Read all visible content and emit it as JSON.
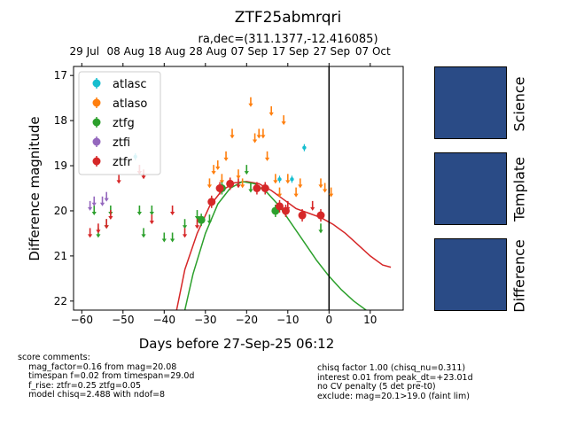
{
  "chart_data": {
    "type": "scatter",
    "title": "ZTF25abmrqri",
    "subtitle": "ra,dec=(311.1377,-12.416085)",
    "xlabel": "Days before 27-Sep-25 06:12",
    "ylabel": "Difference magnitude",
    "xlim": [
      -62,
      18
    ],
    "ylim": [
      22.2,
      16.8
    ],
    "y_inverted": true,
    "xticks": [
      -60,
      -50,
      -40,
      -30,
      -20,
      -10,
      0,
      10
    ],
    "yticks": [
      17,
      18,
      19,
      20,
      21,
      22
    ],
    "top_axis": {
      "tick_x": [
        -60,
        -50,
        -40,
        -30,
        -20,
        -10,
        0,
        10
      ],
      "tick_labels": [
        "29 Jul",
        "08 Aug",
        "18 Aug",
        "28 Aug",
        "07 Sep",
        "17 Sep",
        "27 Sep",
        "07 Oct"
      ]
    },
    "vline_x": 0,
    "legend": {
      "placement": "top-left"
    },
    "series": [
      {
        "name": "atlasc",
        "color": "#17becf",
        "marker": "point",
        "points": [
          [
            -47,
            18.8
          ],
          [
            -12,
            19.3
          ],
          [
            -9,
            19.3
          ],
          [
            -6,
            18.6
          ]
        ]
      },
      {
        "name": "atlaso",
        "color": "#ff7f0e",
        "marker": "upper-limit",
        "points": [
          [
            -29,
            19.4
          ],
          [
            -28,
            19.1
          ],
          [
            -27,
            19.0
          ],
          [
            -26,
            19.3
          ],
          [
            -25,
            18.8
          ],
          [
            -24,
            19.4
          ],
          [
            -23.5,
            18.3
          ],
          [
            -22,
            19.2
          ],
          [
            -21,
            19.4
          ],
          [
            -19,
            17.6
          ],
          [
            -18,
            18.4
          ],
          [
            -17,
            18.3
          ],
          [
            -16,
            18.3
          ],
          [
            -15,
            18.8
          ],
          [
            -14,
            17.8
          ],
          [
            -13,
            19.3
          ],
          [
            -12,
            19.6
          ],
          [
            -11,
            18.0
          ],
          [
            -10,
            19.3
          ],
          [
            -8,
            19.6
          ],
          [
            -7,
            19.4
          ],
          [
            -2,
            19.4
          ],
          [
            -1,
            19.5
          ],
          [
            0.5,
            19.6
          ]
        ]
      },
      {
        "name": "ztfg",
        "color": "#2ca02c",
        "marker": "upper-limit",
        "points": [
          [
            -57,
            20.0
          ],
          [
            -56,
            20.5
          ],
          [
            -54,
            20.3
          ],
          [
            -53,
            20.0
          ],
          [
            -46,
            20.0
          ],
          [
            -45,
            20.5
          ],
          [
            -43,
            20.0
          ],
          [
            -40,
            20.6
          ],
          [
            -38,
            20.6
          ],
          [
            -35,
            20.3
          ],
          [
            -32,
            20.1
          ],
          [
            -29,
            20.2
          ],
          [
            -20,
            19.1
          ],
          [
            -19,
            19.5
          ],
          [
            -2,
            20.4
          ]
        ]
      },
      {
        "name": "ztfg",
        "color": "#2ca02c",
        "marker": "detection",
        "points": [
          [
            -31,
            20.2
          ],
          [
            -26,
            19.5
          ],
          [
            -13,
            20.0
          ]
        ]
      },
      {
        "name": "ztfi",
        "color": "#9467bd",
        "marker": "upper-limit",
        "points": [
          [
            -58,
            19.9
          ],
          [
            -57,
            19.8
          ],
          [
            -55,
            19.8
          ],
          [
            -54,
            19.7
          ],
          [
            -46,
            19.1
          ]
        ]
      },
      {
        "name": "ztfr",
        "color": "#d62728",
        "marker": "upper-limit",
        "points": [
          [
            -58,
            20.5
          ],
          [
            -56,
            20.4
          ],
          [
            -54,
            20.3
          ],
          [
            -53,
            20.1
          ],
          [
            -51,
            19.3
          ],
          [
            -46,
            19.1
          ],
          [
            -45,
            19.2
          ],
          [
            -43,
            20.2
          ],
          [
            -38,
            20.0
          ],
          [
            -35,
            20.5
          ],
          [
            -32,
            20.3
          ],
          [
            -22,
            19.4
          ],
          [
            -10,
            19.9
          ],
          [
            -4,
            19.9
          ]
        ]
      },
      {
        "name": "ztfr",
        "color": "#d62728",
        "marker": "detection",
        "points": [
          [
            -28.5,
            19.8
          ],
          [
            -26.5,
            19.5
          ],
          [
            -24,
            19.4
          ],
          [
            -17.5,
            19.5
          ],
          [
            -15.5,
            19.5
          ],
          [
            -12,
            19.9
          ],
          [
            -10.5,
            20.0
          ],
          [
            -6.5,
            20.1
          ],
          [
            -2,
            20.1
          ]
        ]
      }
    ],
    "legend_entries": [
      {
        "name": "atlasc",
        "color": "#17becf"
      },
      {
        "name": "atlaso",
        "color": "#ff7f0e"
      },
      {
        "name": "ztfg",
        "color": "#2ca02c"
      },
      {
        "name": "ztfi",
        "color": "#9467bd"
      },
      {
        "name": "ztfr",
        "color": "#d62728"
      }
    ],
    "model_curves": [
      {
        "band": "ztfr",
        "color": "#d62728",
        "points": [
          [
            -37,
            22.2
          ],
          [
            -35,
            21.3
          ],
          [
            -32,
            20.5
          ],
          [
            -29,
            19.9
          ],
          [
            -26,
            19.55
          ],
          [
            -23,
            19.38
          ],
          [
            -20,
            19.35
          ],
          [
            -17,
            19.4
          ],
          [
            -14,
            19.55
          ],
          [
            -11,
            19.75
          ],
          [
            -8,
            19.95
          ],
          [
            -5,
            20.05
          ],
          [
            -2,
            20.15
          ],
          [
            1,
            20.3
          ],
          [
            4,
            20.5
          ],
          [
            7,
            20.75
          ],
          [
            10,
            21.0
          ],
          [
            13,
            21.2
          ],
          [
            15,
            21.25
          ]
        ]
      },
      {
        "band": "ztfg",
        "color": "#2ca02c",
        "points": [
          [
            -35,
            22.2
          ],
          [
            -33,
            21.4
          ],
          [
            -30,
            20.5
          ],
          [
            -27,
            19.85
          ],
          [
            -24,
            19.5
          ],
          [
            -21,
            19.35
          ],
          [
            -18,
            19.4
          ],
          [
            -15,
            19.6
          ],
          [
            -12,
            19.9
          ],
          [
            -9,
            20.3
          ],
          [
            -6,
            20.7
          ],
          [
            -3,
            21.1
          ],
          [
            0,
            21.45
          ],
          [
            3,
            21.75
          ],
          [
            6,
            22.0
          ],
          [
            9,
            22.2
          ]
        ]
      }
    ]
  },
  "stamps": [
    {
      "label": "Science"
    },
    {
      "label": "Template"
    },
    {
      "label": "Difference"
    }
  ],
  "notes": {
    "left": "score comments:\n    mag_factor=0.16 from mag=20.08\n    timespan f=0.02 from timespan=29.0d\n    f_rise: ztfr=0.25 ztfg=0.05\n    model chisq=2.488 with ndof=8",
    "right": "chisq factor 1.00 (chisq_nu=0.311)\ninterest 0.01 from peak_dt=+23.01d\nno CV penalty (5 det pre-t0)\nexclude: mag=20.1>19.0 (faint lim)"
  }
}
